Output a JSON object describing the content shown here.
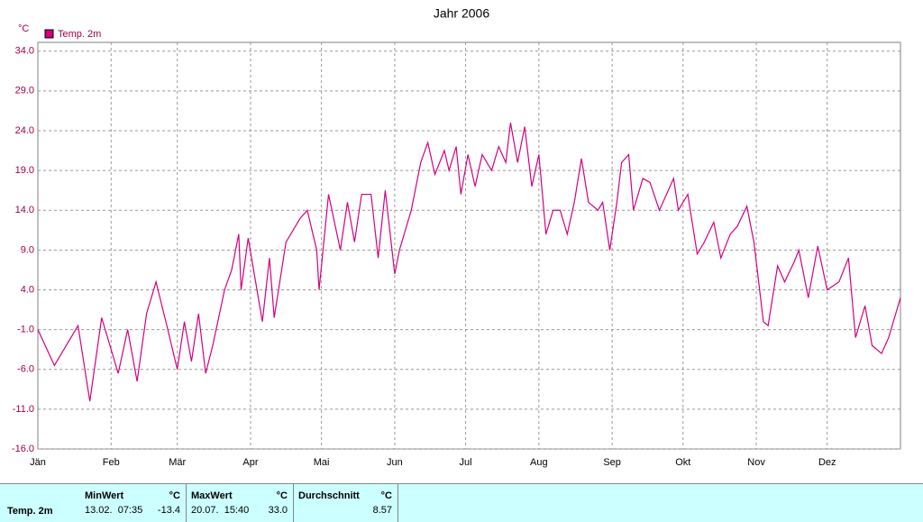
{
  "chart_data": {
    "type": "line",
    "title": "Jahr 2006",
    "unit": "°C",
    "xlim": [
      0,
      365
    ],
    "xticks": [
      {
        "value": 0,
        "label": "Jän"
      },
      {
        "value": 31,
        "label": "Feb"
      },
      {
        "value": 59,
        "label": "Mär"
      },
      {
        "value": 90,
        "label": "Apr"
      },
      {
        "value": 120,
        "label": "Mai"
      },
      {
        "value": 151,
        "label": "Jun"
      },
      {
        "value": 181,
        "label": "Jul"
      },
      {
        "value": 212,
        "label": "Aug"
      },
      {
        "value": 243,
        "label": "Sep"
      },
      {
        "value": 273,
        "label": "Okt"
      },
      {
        "value": 304,
        "label": "Nov"
      },
      {
        "value": 334,
        "label": "Dez"
      }
    ],
    "ylim": [
      -16,
      35.1
    ],
    "yticks": [
      {
        "value": -16,
        "label": "-16.0"
      },
      {
        "value": -11,
        "label": "-11.0"
      },
      {
        "value": -6,
        "label": "-6.0"
      },
      {
        "value": -1,
        "label": "-1.0"
      },
      {
        "value": 4,
        "label": "4.0"
      },
      {
        "value": 9,
        "label": "9.0"
      },
      {
        "value": 14,
        "label": "14.0"
      },
      {
        "value": 19,
        "label": "19.0"
      },
      {
        "value": 24,
        "label": "24.0"
      },
      {
        "value": 29,
        "label": "29.0"
      },
      {
        "value": 34,
        "label": "34.0"
      }
    ],
    "grid": true,
    "x": [
      0,
      7,
      17,
      22,
      27,
      34,
      38,
      42,
      46,
      50,
      55,
      59,
      62,
      65,
      68,
      71,
      74,
      79,
      82,
      85,
      86,
      89,
      95,
      98,
      100,
      105,
      111,
      114,
      118,
      119,
      123,
      128,
      131,
      134,
      137,
      141,
      144,
      147,
      151,
      153,
      158,
      162,
      165,
      168,
      172,
      174,
      177,
      179,
      182,
      185,
      188,
      192,
      195,
      198,
      200,
      203,
      206,
      209,
      212,
      215,
      218,
      221,
      224,
      227,
      230,
      233,
      237,
      239,
      242,
      245,
      247,
      250,
      252,
      256,
      259,
      263,
      266,
      269,
      271,
      275,
      279,
      282,
      286,
      289,
      293,
      296,
      300,
      303,
      307,
      309,
      313,
      316,
      320,
      322,
      326,
      330,
      334,
      339,
      343,
      346,
      350,
      353,
      357,
      360,
      365
    ],
    "series": [
      {
        "name": "Temp. 2m",
        "color": "#d4007f",
        "values": [
          -1,
          -5.5,
          -0.5,
          -10,
          0.5,
          -6.5,
          -1,
          -7.5,
          1,
          5,
          -1,
          -6,
          0,
          -5,
          1,
          -6.5,
          -3,
          4,
          6.5,
          11,
          4,
          10.5,
          0,
          8,
          0.5,
          10,
          13,
          14,
          9,
          4,
          16,
          9,
          15,
          10,
          16,
          16,
          8,
          16.5,
          6,
          9,
          14,
          20,
          22.5,
          18.5,
          21.5,
          19,
          22,
          16,
          21,
          17,
          21,
          19,
          22,
          20,
          25,
          20,
          24.5,
          17,
          21,
          11,
          14,
          14,
          11,
          15,
          20.5,
          15,
          14,
          15,
          9,
          15,
          20,
          21,
          14,
          18,
          17.5,
          14,
          16,
          18,
          14,
          16,
          8.5,
          10,
          12.5,
          8,
          11,
          12,
          14.5,
          10,
          0,
          -0.5,
          7,
          5,
          7.5,
          9,
          3,
          9.5,
          4,
          5,
          8,
          -2,
          2,
          -3,
          -4,
          -2,
          3
        ]
      }
    ]
  },
  "table": {
    "row_label": "Temp. 2m",
    "columns": [
      {
        "header": "MinWert",
        "unit": "°C",
        "time": "13.02.  07:35",
        "value": "-13.4"
      },
      {
        "header": "MaxWert",
        "unit": "°C",
        "time": "20.07.  15:40",
        "value": "33.0"
      },
      {
        "header": "Durchschnitt",
        "unit": "°C",
        "value": "8.57"
      }
    ]
  }
}
